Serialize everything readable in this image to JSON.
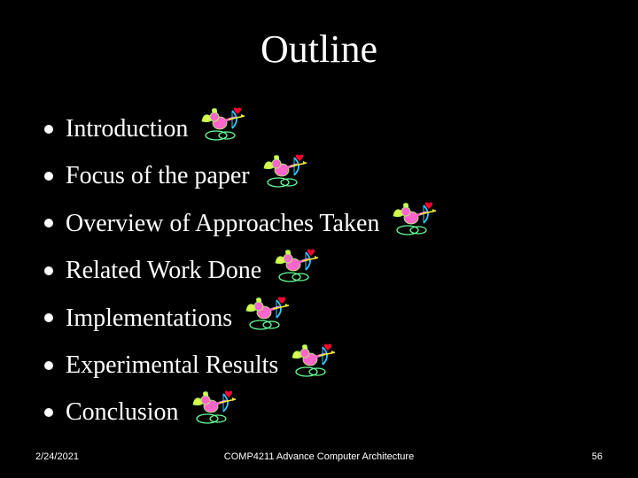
{
  "background_color": "#000000",
  "text_color": "#ffffff",
  "title": "Outline",
  "title_fontsize": 44,
  "bullet_fontsize": 28,
  "bullet_dot_color": "#ffffff",
  "bullets": [
    "Introduction",
    "Focus of the paper",
    "Overview of Approaches Taken",
    "Related Work Done",
    "Implementations",
    "Experimental Results",
    "Conclusion"
  ],
  "clipart": {
    "name": "cupid-icon",
    "wing_color": "#d8ff4a",
    "body_color": "#ff66cc",
    "bow_color": "#33ccff",
    "heart_color": "#ff0033",
    "arrow_color": "#ffee33",
    "outline_color": "#aaff66",
    "cloud_color": "#66ff99"
  },
  "footer": {
    "date": "2/24/2021",
    "course": "COMP4211 Advance Computer Architecture",
    "page": "56",
    "fontsize": 11
  }
}
